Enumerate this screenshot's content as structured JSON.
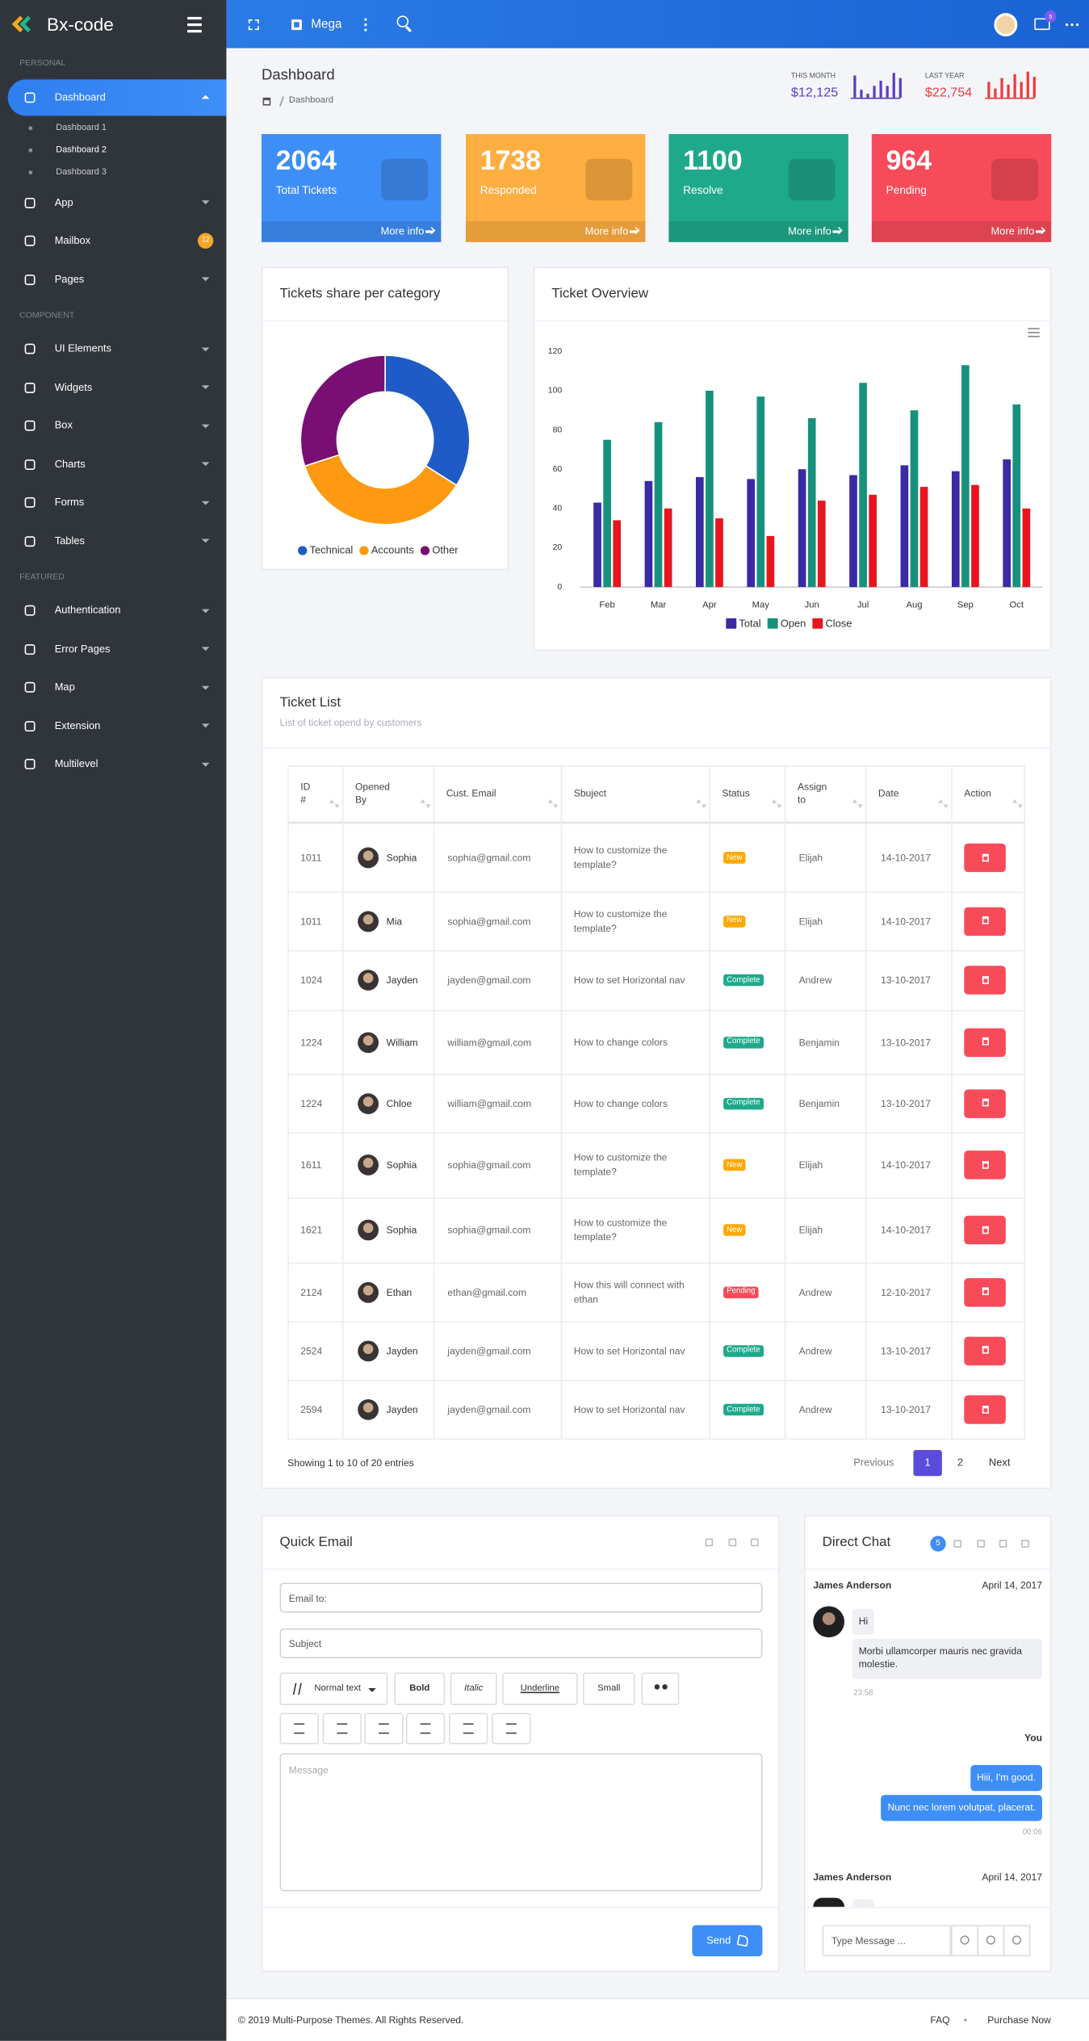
{
  "sidebar": {
    "brand": "Bx-code",
    "sections": [
      {
        "label": "PERSONAL",
        "items": [
          {
            "label": "Dashboard",
            "sub": [
              "Dashboard 1",
              "Dashboard 2",
              "Dashboard 3"
            ]
          },
          {
            "label": "App"
          },
          {
            "label": "Mailbox",
            "badge": 12
          },
          {
            "label": "Pages"
          }
        ]
      },
      {
        "label": "COMPONENT",
        "items": [
          {
            "label": "UI Elements"
          },
          {
            "label": "Widgets"
          },
          {
            "label": "Box"
          },
          {
            "label": "Charts"
          },
          {
            "label": "Forms"
          },
          {
            "label": "Tables"
          }
        ]
      },
      {
        "label": "FEATURED",
        "items": [
          {
            "label": "Authentication"
          },
          {
            "label": "Error Pages"
          },
          {
            "label": "Map"
          },
          {
            "label": "Extension"
          },
          {
            "label": "Multilevel"
          }
        ]
      }
    ]
  },
  "topbar": {
    "mega": "Mega",
    "mail_badge": 5
  },
  "page_header": {
    "title": "Dashboard",
    "breadcrumb": "Dashboard",
    "this_month": {
      "label": "THIS MONTH",
      "value": "$12,125",
      "color": "#5b3cc4",
      "bars": [
        17,
        6,
        3,
        9,
        13,
        9,
        19,
        15
      ]
    },
    "last_year": {
      "label": "LAST YEAR",
      "value": "$22,754",
      "color": "#ef3a3a",
      "bars": [
        12,
        7,
        15,
        10,
        18,
        12,
        20,
        16
      ]
    }
  },
  "stat_cards": [
    {
      "value": 2064,
      "label": "Total Tickets",
      "link": "More info",
      "color": "#3e8ef7"
    },
    {
      "value": 1738,
      "label": "Responded",
      "link": "More info",
      "color": "#ffae42"
    },
    {
      "value": 1100,
      "label": "Resolve",
      "link": "More info",
      "color": "#1fa98b"
    },
    {
      "value": 964,
      "label": "Pending",
      "link": "More info",
      "color": "#f74b5a"
    }
  ],
  "chart_data": [
    {
      "type": "donut",
      "title": "Tickets share per category",
      "categories": [
        "Technical",
        "Accounts",
        "Other"
      ],
      "values": [
        34,
        36,
        30
      ],
      "colors": [
        "#1e5bc6",
        "#fd9a12",
        "#7a0f73"
      ],
      "legend": "bottom"
    },
    {
      "type": "bar",
      "title": "Ticket Overview",
      "categories": [
        "Feb",
        "Mar",
        "Apr",
        "May",
        "Jun",
        "Jul",
        "Aug",
        "Sep",
        "Oct"
      ],
      "series": [
        {
          "name": "Total",
          "color": "#3a2aa3",
          "values": [
            43,
            54,
            56,
            55,
            60,
            57,
            62,
            59,
            65
          ]
        },
        {
          "name": "Open",
          "color": "#16927c",
          "values": [
            75,
            84,
            100,
            97,
            86,
            104,
            90,
            113,
            93
          ]
        },
        {
          "name": "Close",
          "color": "#e8151f",
          "values": [
            34,
            40,
            35,
            26,
            44,
            47,
            51,
            52,
            40
          ]
        }
      ],
      "ylim": [
        0,
        120
      ],
      "yticks": [
        0,
        20,
        40,
        60,
        80,
        100,
        120
      ],
      "legend": "bottom"
    }
  ],
  "ticket_list": {
    "title": "Ticket List",
    "subtitle": "List of ticket opend by customers",
    "columns": [
      "ID #",
      "Opened By",
      "Cust. Email",
      "Sbuject",
      "Status",
      "Assign to",
      "Date",
      "Action"
    ],
    "status_colors": {
      "New": "#ffa800",
      "Complete": "#1fa98b",
      "Pending": "#f74b5a"
    },
    "rows": [
      {
        "id": 1011,
        "opened_by": "Sophia",
        "email": "sophia@gmail.com",
        "subject": "How to customize the template?",
        "status": "New",
        "assign_to": "Elijah",
        "date": "14-10-2017"
      },
      {
        "id": 1011,
        "opened_by": "Mia",
        "email": "sophia@gmail.com",
        "subject": "How to customize the template?",
        "status": "New",
        "assign_to": "Elijah",
        "date": "14-10-2017"
      },
      {
        "id": 1024,
        "opened_by": "Jayden",
        "email": "jayden@gmail.com",
        "subject": "How to set Horizontal nav",
        "status": "Complete",
        "assign_to": "Andrew",
        "date": "13-10-2017"
      },
      {
        "id": 1224,
        "opened_by": "William",
        "email": "william@gmail.com",
        "subject": "How to change colors",
        "status": "Complete",
        "assign_to": "Benjamin",
        "date": "13-10-2017"
      },
      {
        "id": 1224,
        "opened_by": "Chloe",
        "email": "william@gmail.com",
        "subject": "How to change colors",
        "status": "Complete",
        "assign_to": "Benjamin",
        "date": "13-10-2017"
      },
      {
        "id": 1611,
        "opened_by": "Sophia",
        "email": "sophia@gmail.com",
        "subject": "How to customize the template?",
        "status": "New",
        "assign_to": "Elijah",
        "date": "14-10-2017"
      },
      {
        "id": 1621,
        "opened_by": "Sophia",
        "email": "sophia@gmail.com",
        "subject": "How to customize the template?",
        "status": "New",
        "assign_to": "Elijah",
        "date": "14-10-2017"
      },
      {
        "id": 2124,
        "opened_by": "Ethan",
        "email": "ethan@gmail.com",
        "subject": "How this will connect with ethan",
        "status": "Pending",
        "assign_to": "Andrew",
        "date": "12-10-2017"
      },
      {
        "id": 2524,
        "opened_by": "Jayden",
        "email": "jayden@gmail.com",
        "subject": "How to set Horizontal nav",
        "status": "Complete",
        "assign_to": "Andrew",
        "date": "13-10-2017"
      },
      {
        "id": 2594,
        "opened_by": "Jayden",
        "email": "jayden@gmail.com",
        "subject": "How to set Horizontal nav",
        "status": "Complete",
        "assign_to": "Andrew",
        "date": "13-10-2017"
      }
    ],
    "pagination": {
      "info": "Showing 1 to 10 of 20 entries",
      "previous": "Previous",
      "pages": [
        1,
        2
      ],
      "next": "Next"
    }
  },
  "quick_email": {
    "title": "Quick Email",
    "email_placeholder": "Email to:",
    "subject_placeholder": "Subject",
    "toolbar": [
      "Normal text",
      "Bold",
      "Italic",
      "Underline",
      "Small"
    ],
    "message_placeholder": "Message",
    "send": "Send"
  },
  "direct_chat": {
    "title": "Direct Chat",
    "badge": 5,
    "messages": [
      {
        "sender": "James Anderson",
        "date": "April 14, 2017",
        "texts": [
          "Hi",
          "Morbi ullamcorper mauris nec gravida molestie."
        ],
        "time": "23:58"
      },
      {
        "sender": "You",
        "texts": [
          "Hiii, I'm good.",
          "Nunc nec lorem volutpat, placerat."
        ],
        "time": "00:06"
      },
      {
        "sender": "James Anderson",
        "date": "April 14, 2017"
      }
    ],
    "input_placeholder": "Type Message ..."
  },
  "footer": {
    "copyright": "© 2019 Multi-Purpose Themes. All Rights Reserved.",
    "links": [
      "FAQ",
      "Purchase Now"
    ]
  }
}
